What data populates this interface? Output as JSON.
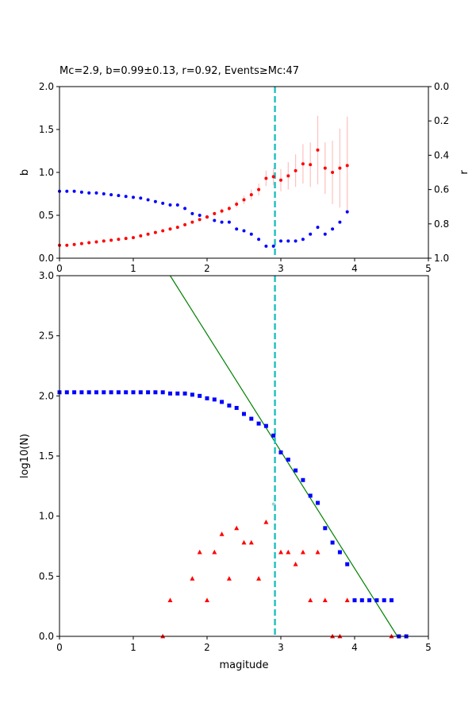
{
  "chart_data": [
    {
      "type": "scatter",
      "title": "Mc=2.9, b=0.99±0.13, r=0.92, Events≥Mc:47",
      "xlabel": "",
      "ylabel": "b",
      "ylabel_right": "r",
      "xlim": [
        0,
        5
      ],
      "ylim": [
        0,
        2
      ],
      "ylim_right": [
        1,
        0
      ],
      "xticks": [
        "0",
        "1",
        "2",
        "3",
        "4",
        "5"
      ],
      "yticks": [
        "0.0",
        "0.5",
        "1.0",
        "1.5",
        "2.0"
      ],
      "yticks_right": [
        "0.0",
        "0.2",
        "0.4",
        "0.6",
        "0.8",
        "1.0"
      ],
      "mc_line": 2.92,
      "colors": {
        "b": "#ff0000",
        "r": "#0000ff",
        "errorbar": "#ffc0c0",
        "mc": "#1fbfbf"
      },
      "series": [
        {
          "axis": "left",
          "x": [
            0.0,
            0.1,
            0.2,
            0.3,
            0.4,
            0.5,
            0.6,
            0.7,
            0.8,
            0.9,
            1.0,
            1.1,
            1.2,
            1.3,
            1.4,
            1.5,
            1.6,
            1.7,
            1.8,
            1.9,
            2.0,
            2.1,
            2.2,
            2.3,
            2.4,
            2.5,
            2.6,
            2.7,
            2.8,
            2.9,
            3.0,
            3.1,
            3.2,
            3.3,
            3.4,
            3.5,
            3.6,
            3.7,
            3.8,
            3.9
          ],
          "y": [
            0.15,
            0.15,
            0.16,
            0.17,
            0.18,
            0.19,
            0.2,
            0.21,
            0.22,
            0.23,
            0.24,
            0.26,
            0.28,
            0.3,
            0.32,
            0.34,
            0.36,
            0.39,
            0.42,
            0.45,
            0.48,
            0.52,
            0.55,
            0.58,
            0.63,
            0.68,
            0.74,
            0.8,
            0.93,
            0.95,
            0.91,
            0.96,
            1.02,
            1.1,
            1.09,
            1.26,
            1.05,
            1.0,
            1.05,
            1.08
          ],
          "yerr": [
            0.01,
            0.01,
            0.01,
            0.01,
            0.01,
            0.01,
            0.01,
            0.01,
            0.01,
            0.01,
            0.01,
            0.01,
            0.01,
            0.01,
            0.01,
            0.01,
            0.01,
            0.01,
            0.01,
            0.01,
            0.02,
            0.02,
            0.03,
            0.03,
            0.04,
            0.05,
            0.06,
            0.07,
            0.09,
            0.1,
            0.13,
            0.16,
            0.19,
            0.23,
            0.26,
            0.4,
            0.3,
            0.37,
            0.46,
            0.57
          ]
        },
        {
          "axis": "right",
          "x": [
            0.0,
            0.1,
            0.2,
            0.3,
            0.4,
            0.5,
            0.6,
            0.7,
            0.8,
            0.9,
            1.0,
            1.1,
            1.2,
            1.3,
            1.4,
            1.5,
            1.6,
            1.7,
            1.8,
            1.9,
            2.0,
            2.1,
            2.2,
            2.3,
            2.4,
            2.5,
            2.6,
            2.7,
            2.8,
            2.9,
            3.0,
            3.1,
            3.2,
            3.3,
            3.4,
            3.5,
            3.6,
            3.7,
            3.8,
            3.9
          ],
          "y": [
            0.61,
            0.61,
            0.61,
            0.615,
            0.62,
            0.62,
            0.625,
            0.63,
            0.635,
            0.64,
            0.645,
            0.65,
            0.66,
            0.67,
            0.68,
            0.69,
            0.69,
            0.71,
            0.74,
            0.75,
            0.76,
            0.78,
            0.79,
            0.79,
            0.83,
            0.84,
            0.86,
            0.89,
            0.93,
            0.93,
            0.9,
            0.9,
            0.9,
            0.89,
            0.86,
            0.82,
            0.86,
            0.83,
            0.79,
            0.73
          ]
        }
      ]
    },
    {
      "type": "scatter",
      "title": "",
      "xlabel": "magitude",
      "ylabel": "log10(N)",
      "xlim": [
        0,
        5
      ],
      "ylim": [
        0,
        3
      ],
      "xticks": [
        "0",
        "1",
        "2",
        "3",
        "4",
        "5"
      ],
      "yticks": [
        "0.0",
        "0.5",
        "1.0",
        "1.5",
        "2.0",
        "2.5",
        "3.0"
      ],
      "mc_line": 2.92,
      "mc_point": [
        2.9,
        1.1
      ],
      "colors": {
        "cumulative": "#0000ff",
        "noncumulative": "#ff0000",
        "fit": "#008000",
        "mc": "#1fbfbf"
      },
      "fit_line": {
        "x": [
          1.5,
          4.58
        ],
        "y": [
          3.0,
          0.0
        ]
      },
      "series": [
        {
          "marker": "square",
          "x": [
            0.0,
            0.1,
            0.2,
            0.3,
            0.4,
            0.5,
            0.6,
            0.7,
            0.8,
            0.9,
            1.0,
            1.1,
            1.2,
            1.3,
            1.4,
            1.5,
            1.6,
            1.7,
            1.8,
            1.9,
            2.0,
            2.1,
            2.2,
            2.3,
            2.4,
            2.5,
            2.6,
            2.7,
            2.8,
            2.9,
            3.0,
            3.1,
            3.2,
            3.3,
            3.4,
            3.5,
            3.6,
            3.7,
            3.8,
            3.9,
            4.0,
            4.1,
            4.2,
            4.3,
            4.4,
            4.5,
            4.6,
            4.7
          ],
          "y": [
            2.03,
            2.03,
            2.03,
            2.03,
            2.03,
            2.03,
            2.03,
            2.03,
            2.03,
            2.03,
            2.03,
            2.03,
            2.03,
            2.03,
            2.03,
            2.02,
            2.02,
            2.02,
            2.01,
            2.0,
            1.98,
            1.97,
            1.95,
            1.92,
            1.9,
            1.85,
            1.81,
            1.77,
            1.75,
            1.67,
            1.53,
            1.47,
            1.38,
            1.3,
            1.17,
            1.11,
            0.9,
            0.78,
            0.7,
            0.6,
            0.3,
            0.3,
            0.3,
            0.3,
            0.3,
            0.3,
            0.0,
            0.0
          ]
        },
        {
          "marker": "triangle",
          "x": [
            1.4,
            1.5,
            1.8,
            1.9,
            2.0,
            2.1,
            2.2,
            2.3,
            2.4,
            2.5,
            2.6,
            2.7,
            2.8,
            3.0,
            3.1,
            3.2,
            3.3,
            3.4,
            3.5,
            3.6,
            3.7,
            3.8,
            3.9,
            4.5
          ],
          "y": [
            0.0,
            0.3,
            0.48,
            0.7,
            0.3,
            0.7,
            0.85,
            0.48,
            0.9,
            0.78,
            0.78,
            0.48,
            0.95,
            0.7,
            0.7,
            0.6,
            0.7,
            0.3,
            0.7,
            0.3,
            0.0,
            0.0,
            0.3,
            0.0
          ]
        }
      ]
    }
  ]
}
